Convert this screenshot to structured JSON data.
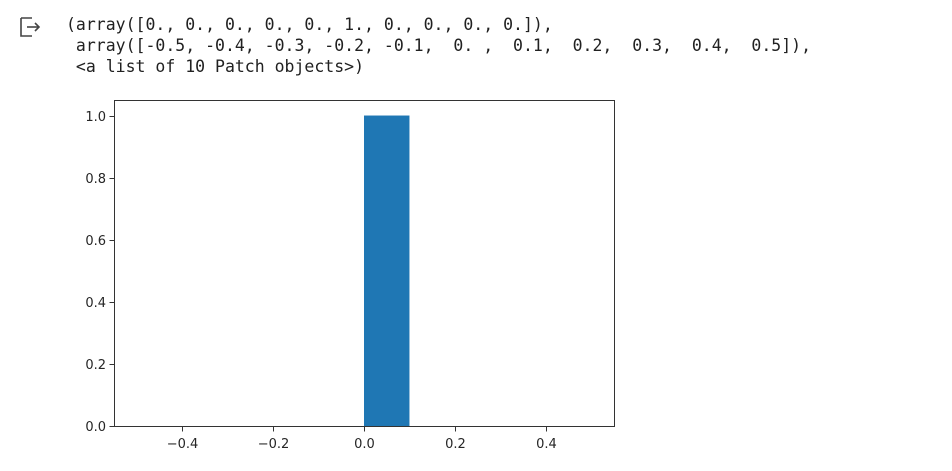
{
  "output": {
    "icon": "output-arrow-icon",
    "lines": [
      "(array([0., 0., 0., 0., 0., 1., 0., 0., 0., 0.]),",
      " array([-0.5, -0.4, -0.3, -0.2, -0.1,  0. ,  0.1,  0.2,  0.3,  0.4,  0.5]),",
      " <a list of 10 Patch objects>)"
    ]
  },
  "chart_data": {
    "type": "bar",
    "title": "",
    "xlabel": "",
    "ylabel": "",
    "bin_edges": [
      -0.5,
      -0.4,
      -0.3,
      -0.2,
      -0.1,
      0.0,
      0.1,
      0.2,
      0.3,
      0.4,
      0.5
    ],
    "values": [
      0,
      0,
      0,
      0,
      0,
      1,
      0,
      0,
      0,
      0
    ],
    "xlim": [
      -0.55,
      0.55
    ],
    "ylim": [
      0,
      1.05
    ],
    "x_ticks": [
      -0.4,
      -0.2,
      0.0,
      0.2,
      0.4
    ],
    "x_tick_labels": [
      "−0.4",
      "−0.2",
      "0.0",
      "0.2",
      "0.4"
    ],
    "y_ticks": [
      0.0,
      0.2,
      0.4,
      0.6,
      0.8,
      1.0
    ],
    "y_tick_labels": [
      "0.0",
      "0.2",
      "0.4",
      "0.6",
      "0.8",
      "1.0"
    ],
    "bar_color": "#1f77b4",
    "grid": false
  }
}
